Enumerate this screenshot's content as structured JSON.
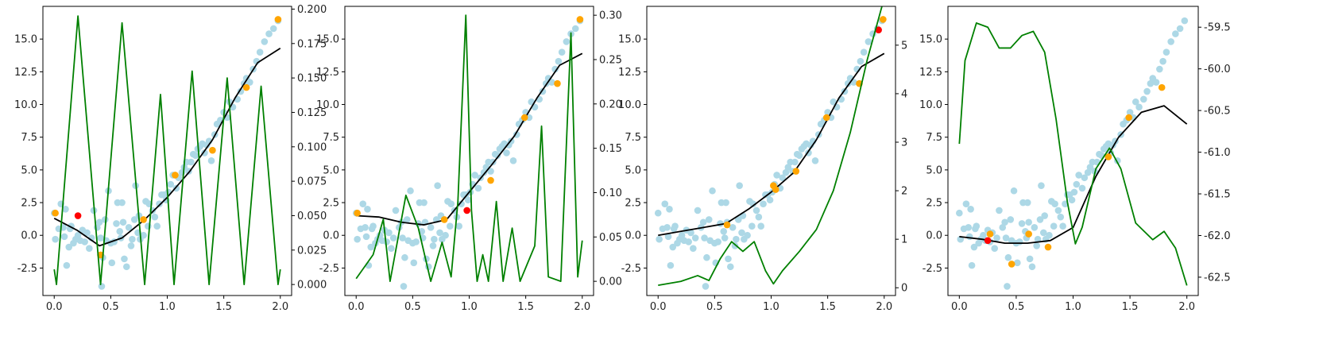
{
  "colors": {
    "scatter": "#add8e6",
    "highlight": "#ffa500",
    "selected": "#ff0000",
    "fit": "#000000",
    "acquisition": "#008000",
    "axis": "#000000"
  },
  "chart_data": [
    {
      "type": "line",
      "xlim": [
        -0.1,
        2.1
      ],
      "ylim": [
        -4.6,
        17.5
      ],
      "y2lim": [
        -0.008,
        0.202
      ],
      "xticks": [
        "0.0",
        "0.5",
        "1.0",
        "1.5",
        "2.0"
      ],
      "xtick_values": [
        0,
        0.5,
        1,
        1.5,
        2
      ],
      "yticks": [
        "-2.5",
        "0.0",
        "2.5",
        "5.0",
        "7.5",
        "10.0",
        "12.5",
        "15.0"
      ],
      "ytick_values": [
        -2.5,
        0,
        2.5,
        5,
        7.5,
        10,
        12.5,
        15
      ],
      "y2ticks": [
        "0.000",
        "0.025",
        "0.050",
        "0.075",
        "0.100",
        "0.125",
        "0.150",
        "0.175",
        "0.200"
      ],
      "y2tick_values": [
        0,
        0.025,
        0.05,
        0.075,
        0.1,
        0.125,
        0.15,
        0.175,
        0.2
      ],
      "highlight_points": [
        [
          0.01,
          1.7
        ],
        [
          0.41,
          -1.5
        ],
        [
          0.79,
          1.2
        ],
        [
          1.07,
          4.6
        ],
        [
          1.4,
          6.5
        ],
        [
          1.7,
          11.3
        ],
        [
          1.98,
          16.5
        ]
      ],
      "selected_point": [
        0.21,
        1.5
      ],
      "fit_curve": [
        [
          0,
          1.3
        ],
        [
          0.2,
          0.4
        ],
        [
          0.4,
          -0.8
        ],
        [
          0.6,
          -0.2
        ],
        [
          0.8,
          1.2
        ],
        [
          1.0,
          2.9
        ],
        [
          1.2,
          4.9
        ],
        [
          1.4,
          7.3
        ],
        [
          1.6,
          10.5
        ],
        [
          1.8,
          13.2
        ],
        [
          2.0,
          14.3
        ]
      ],
      "acquisition_curve": [
        [
          0.0,
          0.011
        ],
        [
          0.02,
          0.0
        ],
        [
          0.21,
          0.195
        ],
        [
          0.41,
          0.0
        ],
        [
          0.6,
          0.19
        ],
        [
          0.8,
          0.0
        ],
        [
          0.94,
          0.138
        ],
        [
          1.06,
          0.0
        ],
        [
          1.22,
          0.155
        ],
        [
          1.37,
          0.0
        ],
        [
          1.53,
          0.15
        ],
        [
          1.68,
          0.0
        ],
        [
          1.83,
          0.144
        ],
        [
          1.98,
          0.0
        ],
        [
          2.0,
          0.011
        ]
      ]
    },
    {
      "type": "line",
      "xlim": [
        -0.1,
        2.1
      ],
      "ylim": [
        -4.6,
        17.5
      ],
      "y2lim": [
        -0.016,
        0.31
      ],
      "xticks": [
        "0.0",
        "0.5",
        "1.0",
        "1.5",
        "2.0"
      ],
      "xtick_values": [
        0,
        0.5,
        1,
        1.5,
        2
      ],
      "yticks": [
        "-2.5",
        "0.0",
        "2.5",
        "5.0",
        "7.5",
        "10.0",
        "12.5",
        "15.0"
      ],
      "ytick_values": [
        -2.5,
        0,
        2.5,
        5,
        7.5,
        10,
        12.5,
        15
      ],
      "y2ticks": [
        "0.00",
        "0.05",
        "0.10",
        "0.15",
        "0.20",
        "0.25",
        "0.30"
      ],
      "y2tick_values": [
        0,
        0.05,
        0.1,
        0.15,
        0.2,
        0.25,
        0.3
      ],
      "highlight_points": [
        [
          0.01,
          1.7
        ],
        [
          0.78,
          1.2
        ],
        [
          1.19,
          4.2
        ],
        [
          1.49,
          9.0
        ],
        [
          1.78,
          11.6
        ],
        [
          1.98,
          16.5
        ]
      ],
      "selected_point": [
        0.98,
        1.9
      ],
      "fit_curve": [
        [
          0,
          1.5
        ],
        [
          0.2,
          1.4
        ],
        [
          0.4,
          1.0
        ],
        [
          0.6,
          0.8
        ],
        [
          0.8,
          1.2
        ],
        [
          1.0,
          3.3
        ],
        [
          1.2,
          5.4
        ],
        [
          1.4,
          7.6
        ],
        [
          1.6,
          10.5
        ],
        [
          1.8,
          13.0
        ],
        [
          2.0,
          13.9
        ]
      ],
      "acquisition_curve": [
        [
          0.0,
          0.003
        ],
        [
          0.15,
          0.03
        ],
        [
          0.24,
          0.07
        ],
        [
          0.3,
          0.0
        ],
        [
          0.44,
          0.097
        ],
        [
          0.55,
          0.06
        ],
        [
          0.66,
          0.0
        ],
        [
          0.76,
          0.044
        ],
        [
          0.84,
          0.005
        ],
        [
          0.9,
          0.09
        ],
        [
          0.97,
          0.3
        ],
        [
          1.02,
          0.08
        ],
        [
          1.07,
          0.0
        ],
        [
          1.12,
          0.03
        ],
        [
          1.17,
          0.0
        ],
        [
          1.24,
          0.09
        ],
        [
          1.3,
          0.0
        ],
        [
          1.38,
          0.06
        ],
        [
          1.45,
          0.0
        ],
        [
          1.58,
          0.04
        ],
        [
          1.64,
          0.175
        ],
        [
          1.7,
          0.005
        ],
        [
          1.81,
          0.0
        ],
        [
          1.9,
          0.28
        ],
        [
          1.96,
          0.005
        ],
        [
          2.0,
          0.046
        ]
      ]
    },
    {
      "type": "line",
      "xlim": [
        -0.1,
        2.1
      ],
      "ylim": [
        -4.6,
        17.5
      ],
      "y2lim": [
        -0.16,
        5.8
      ],
      "xticks": [
        "0.0",
        "0.5",
        "1.0",
        "1.5",
        "2.0"
      ],
      "xtick_values": [
        0,
        0.5,
        1,
        1.5,
        2
      ],
      "yticks": [
        "-2.5",
        "0.0",
        "2.5",
        "5.0",
        "7.5",
        "10.0",
        "12.5",
        "15.0"
      ],
      "ytick_values": [
        -2.5,
        0,
        2.5,
        5,
        7.5,
        10,
        12.5,
        15
      ],
      "y2ticks": [
        "0",
        "1",
        "2",
        "3",
        "4",
        "5"
      ],
      "y2tick_values": [
        0,
        1,
        2,
        3,
        4,
        5
      ],
      "highlight_points": [
        [
          0.61,
          0.8
        ],
        [
          1.02,
          3.8
        ],
        [
          1.04,
          3.5
        ],
        [
          1.22,
          4.9
        ],
        [
          1.49,
          9.0
        ],
        [
          1.78,
          11.6
        ],
        [
          1.99,
          16.5
        ]
      ],
      "selected_point": [
        1.95,
        15.7
      ],
      "fit_curve": [
        [
          0,
          0.0
        ],
        [
          0.2,
          0.3
        ],
        [
          0.4,
          0.6
        ],
        [
          0.6,
          0.9
        ],
        [
          0.8,
          2.0
        ],
        [
          1.0,
          3.3
        ],
        [
          1.2,
          4.8
        ],
        [
          1.4,
          7.3
        ],
        [
          1.6,
          10.5
        ],
        [
          1.8,
          12.9
        ],
        [
          2.0,
          13.9
        ]
      ],
      "acquisition_curve": [
        [
          0,
          0.05
        ],
        [
          0.2,
          0.13
        ],
        [
          0.35,
          0.25
        ],
        [
          0.45,
          0.15
        ],
        [
          0.55,
          0.6
        ],
        [
          0.65,
          0.95
        ],
        [
          0.75,
          0.75
        ],
        [
          0.85,
          0.95
        ],
        [
          0.95,
          0.35
        ],
        [
          1.02,
          0.08
        ],
        [
          1.1,
          0.35
        ],
        [
          1.25,
          0.75
        ],
        [
          1.4,
          1.2
        ],
        [
          1.55,
          2.0
        ],
        [
          1.7,
          3.2
        ],
        [
          1.85,
          4.7
        ],
        [
          1.98,
          5.8
        ]
      ]
    },
    {
      "type": "line",
      "xlim": [
        -0.1,
        2.1
      ],
      "ylim": [
        -4.6,
        17.5
      ],
      "y2lim": [
        -62.72,
        -59.25
      ],
      "xticks": [
        "0.0",
        "0.5",
        "1.0",
        "1.5",
        "2.0"
      ],
      "xtick_values": [
        0,
        0.5,
        1,
        1.5,
        2
      ],
      "yticks": [
        "-2.5",
        "0.0",
        "2.5",
        "5.0",
        "7.5",
        "10.0",
        "12.5",
        "15.0"
      ],
      "ytick_values": [
        -2.5,
        0,
        2.5,
        5,
        7.5,
        10,
        12.5,
        15
      ],
      "y2ticks": [
        "-62.5",
        "-62.0",
        "-61.5",
        "-61.0",
        "-60.5",
        "-60.0",
        "-59.5"
      ],
      "y2tick_values": [
        -62.5,
        -62.0,
        -61.5,
        -61.0,
        -60.5,
        -60.0,
        -59.5
      ],
      "highlight_points": [
        [
          0.27,
          0.1
        ],
        [
          0.46,
          -2.2
        ],
        [
          0.61,
          0.1
        ],
        [
          0.78,
          -0.9
        ],
        [
          1.31,
          6.0
        ],
        [
          1.49,
          9.0
        ],
        [
          1.78,
          11.3
        ]
      ],
      "selected_point": [
        0.25,
        -0.4
      ],
      "fit_curve": [
        [
          0,
          -0.1
        ],
        [
          0.2,
          -0.3
        ],
        [
          0.4,
          -0.6
        ],
        [
          0.6,
          -0.6
        ],
        [
          0.8,
          -0.4
        ],
        [
          1.0,
          0.6
        ],
        [
          1.2,
          4.5
        ],
        [
          1.4,
          7.5
        ],
        [
          1.6,
          9.4
        ],
        [
          1.8,
          9.9
        ],
        [
          2.0,
          8.5
        ]
      ],
      "acquisition_curve": [
        [
          0.0,
          -60.9
        ],
        [
          0.05,
          -59.9
        ],
        [
          0.15,
          -59.45
        ],
        [
          0.25,
          -59.5
        ],
        [
          0.35,
          -59.75
        ],
        [
          0.45,
          -59.75
        ],
        [
          0.55,
          -59.6
        ],
        [
          0.65,
          -59.55
        ],
        [
          0.75,
          -59.8
        ],
        [
          0.85,
          -60.6
        ],
        [
          0.95,
          -61.6
        ],
        [
          1.02,
          -62.1
        ],
        [
          1.08,
          -61.9
        ],
        [
          1.2,
          -61.2
        ],
        [
          1.32,
          -60.95
        ],
        [
          1.42,
          -61.2
        ],
        [
          1.55,
          -61.85
        ],
        [
          1.7,
          -62.05
        ],
        [
          1.8,
          -61.95
        ],
        [
          1.9,
          -62.15
        ],
        [
          2.0,
          -62.6
        ]
      ]
    }
  ],
  "scatter_data": [
    [
      0.0,
      1.7
    ],
    [
      0.01,
      -0.3
    ],
    [
      0.04,
      0.5
    ],
    [
      0.06,
      2.4
    ],
    [
      0.08,
      0.6
    ],
    [
      0.09,
      -0.1
    ],
    [
      0.1,
      2.0
    ],
    [
      0.11,
      -2.3
    ],
    [
      0.13,
      -0.9
    ],
    [
      0.14,
      0.5
    ],
    [
      0.15,
      0.7
    ],
    [
      0.17,
      -0.6
    ],
    [
      0.19,
      -0.3
    ],
    [
      0.21,
      0.0
    ],
    [
      0.23,
      -0.4
    ],
    [
      0.25,
      0.4
    ],
    [
      0.27,
      -0.5
    ],
    [
      0.29,
      0.2
    ],
    [
      0.31,
      -1.0
    ],
    [
      0.33,
      -0.2
    ],
    [
      0.35,
      1.9
    ],
    [
      0.38,
      0.6
    ],
    [
      0.4,
      1.0
    ],
    [
      0.41,
      -0.2
    ],
    [
      0.42,
      -3.9
    ],
    [
      0.43,
      -1.7
    ],
    [
      0.45,
      1.2
    ],
    [
      0.46,
      -0.4
    ],
    [
      0.48,
      3.4
    ],
    [
      0.5,
      -0.6
    ],
    [
      0.51,
      -2.1
    ],
    [
      0.53,
      -0.5
    ],
    [
      0.55,
      0.9
    ],
    [
      0.56,
      2.5
    ],
    [
      0.58,
      0.3
    ],
    [
      0.59,
      -0.2
    ],
    [
      0.6,
      2.5
    ],
    [
      0.61,
      1.0
    ],
    [
      0.62,
      -1.8
    ],
    [
      0.64,
      -2.4
    ],
    [
      0.66,
      0.6
    ],
    [
      0.68,
      -0.8
    ],
    [
      0.69,
      -0.3
    ],
    [
      0.71,
      1.2
    ],
    [
      0.72,
      3.8
    ],
    [
      0.74,
      0.2
    ],
    [
      0.75,
      1.5
    ],
    [
      0.76,
      -0.3
    ],
    [
      0.79,
      0.0
    ],
    [
      0.81,
      2.6
    ],
    [
      0.83,
      0.7
    ],
    [
      0.84,
      2.4
    ],
    [
      0.87,
      1.9
    ],
    [
      0.89,
      1.4
    ],
    [
      0.91,
      0.7
    ],
    [
      0.93,
      2.4
    ],
    [
      0.95,
      3.1
    ],
    [
      0.97,
      3.1
    ],
    [
      0.99,
      2.7
    ],
    [
      1.01,
      3.3
    ],
    [
      1.03,
      3.9
    ],
    [
      1.05,
      4.6
    ],
    [
      1.08,
      3.6
    ],
    [
      1.1,
      4.4
    ],
    [
      1.13,
      4.8
    ],
    [
      1.15,
      5.2
    ],
    [
      1.17,
      5.6
    ],
    [
      1.19,
      4.9
    ],
    [
      1.21,
      5.6
    ],
    [
      1.23,
      6.2
    ],
    [
      1.25,
      6.1
    ],
    [
      1.27,
      6.6
    ],
    [
      1.29,
      6.8
    ],
    [
      1.31,
      7.0
    ],
    [
      1.33,
      6.3
    ],
    [
      1.35,
      6.9
    ],
    [
      1.37,
      7.2
    ],
    [
      1.39,
      5.7
    ],
    [
      1.42,
      7.7
    ],
    [
      1.44,
      8.5
    ],
    [
      1.47,
      8.8
    ],
    [
      1.5,
      9.4
    ],
    [
      1.53,
      9.0
    ],
    [
      1.55,
      10.2
    ],
    [
      1.58,
      9.8
    ],
    [
      1.62,
      10.4
    ],
    [
      1.65,
      11.0
    ],
    [
      1.68,
      11.6
    ],
    [
      1.7,
      12.0
    ],
    [
      1.73,
      11.7
    ],
    [
      1.76,
      12.7
    ],
    [
      1.79,
      13.3
    ],
    [
      1.82,
      14.0
    ],
    [
      1.86,
      14.8
    ],
    [
      1.9,
      15.4
    ],
    [
      1.94,
      15.8
    ],
    [
      1.98,
      16.4
    ]
  ]
}
